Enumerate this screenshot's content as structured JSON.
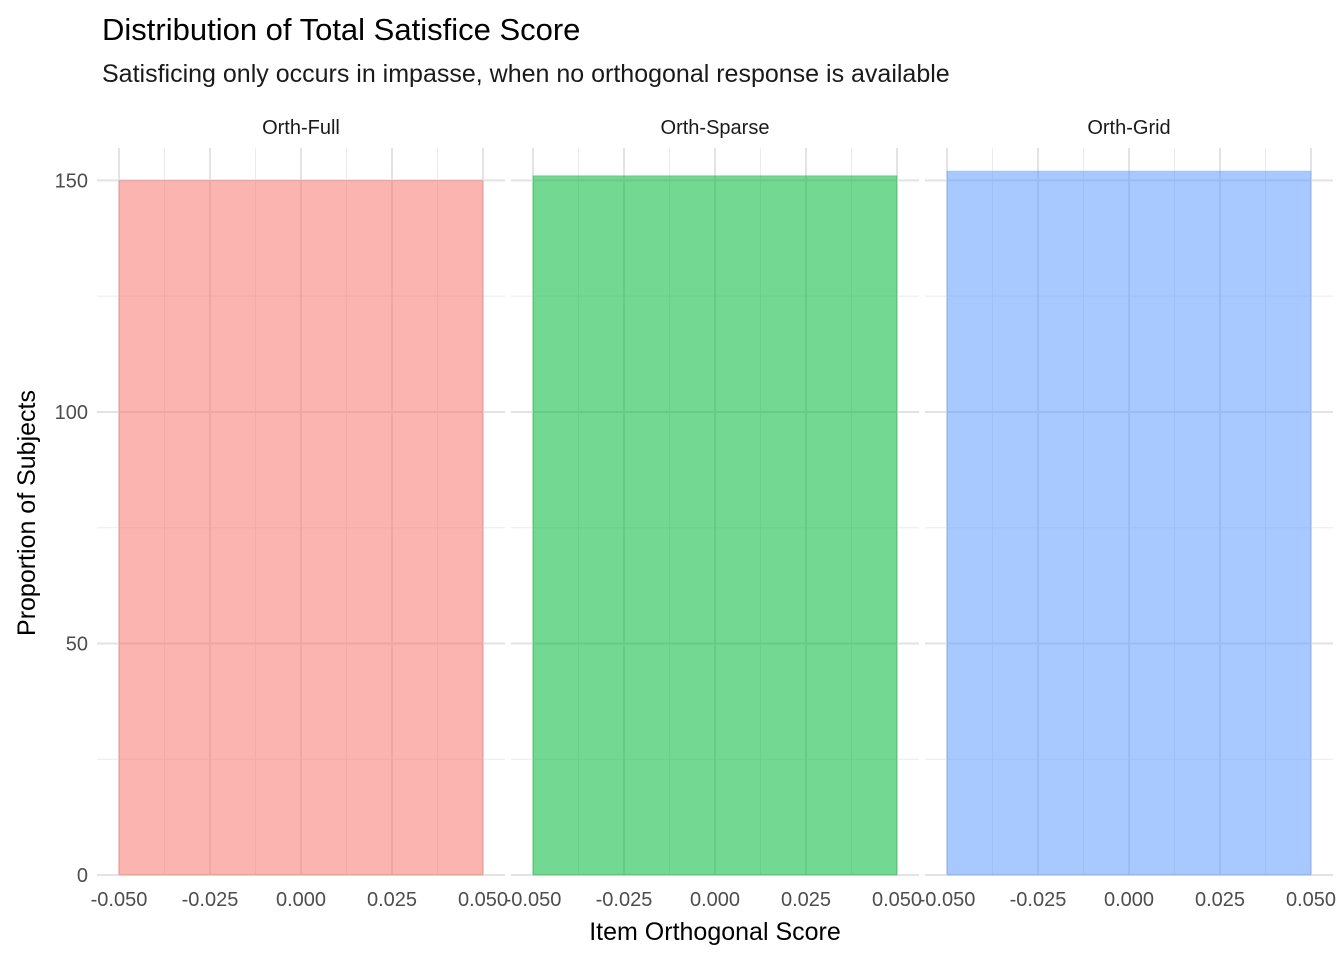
{
  "chart_data": {
    "type": "bar",
    "title": "Distribution of Total Satisfice Score",
    "subtitle": "Satisficing only occurs in impasse, when no orthogonal response is available",
    "xlabel": "Item Orthogonal Score",
    "ylabel": "Proportion of Subjects",
    "xlim": [
      -0.05,
      0.05
    ],
    "ylim": [
      0,
      157
    ],
    "x_ticks": [
      -0.05,
      -0.025,
      0,
      0.025,
      0.05
    ],
    "x_tick_labels": [
      "-0.050",
      "-0.025",
      "0.000",
      "0.025",
      "0.050"
    ],
    "y_ticks": [
      0,
      50,
      100,
      150
    ],
    "y_tick_labels": [
      "0",
      "50",
      "100",
      "150"
    ],
    "grid": true,
    "legend": "none",
    "facets": [
      {
        "label": "Orth-Full",
        "color": "#F8766D",
        "bar": {
          "x_min": -0.05,
          "x_max": 0.05,
          "value": 150
        }
      },
      {
        "label": "Orth-Sparse",
        "color": "#00BA38",
        "bar": {
          "x_min": -0.05,
          "x_max": 0.05,
          "value": 151
        }
      },
      {
        "label": "Orth-Grid",
        "color": "#619CFF",
        "bar": {
          "x_min": -0.05,
          "x_max": 0.05,
          "value": 152
        }
      }
    ]
  }
}
